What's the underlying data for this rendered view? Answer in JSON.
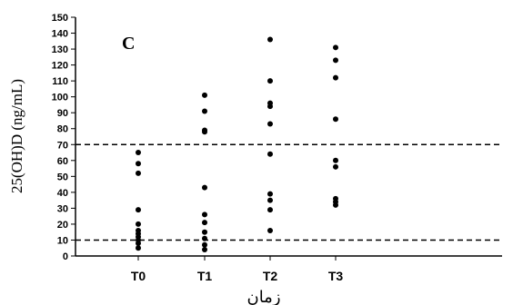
{
  "chart_data": {
    "type": "scatter",
    "panel_label": "C",
    "ylabel": "25(OH)D (ng/mL)",
    "xlabel": "زمان",
    "categories": [
      "T0",
      "T1",
      "T2",
      "T3"
    ],
    "ylim": [
      0,
      150
    ],
    "y_ticks": [
      0,
      10,
      20,
      30,
      40,
      50,
      60,
      70,
      80,
      90,
      100,
      110,
      120,
      130,
      140,
      150
    ],
    "reference_lines": [
      10,
      70
    ],
    "points": [
      {
        "x": "T0",
        "values": [
          65,
          58,
          52,
          29,
          20,
          16,
          14,
          12,
          10,
          8,
          5
        ]
      },
      {
        "x": "T1",
        "values": [
          101,
          91,
          79,
          78,
          43,
          26,
          21,
          15,
          11,
          7,
          4
        ]
      },
      {
        "x": "T2",
        "values": [
          136,
          110,
          96,
          94,
          83,
          64,
          39,
          35,
          29,
          16
        ]
      },
      {
        "x": "T3",
        "values": [
          131,
          123,
          112,
          86,
          60,
          56,
          36,
          34,
          32
        ]
      }
    ]
  }
}
